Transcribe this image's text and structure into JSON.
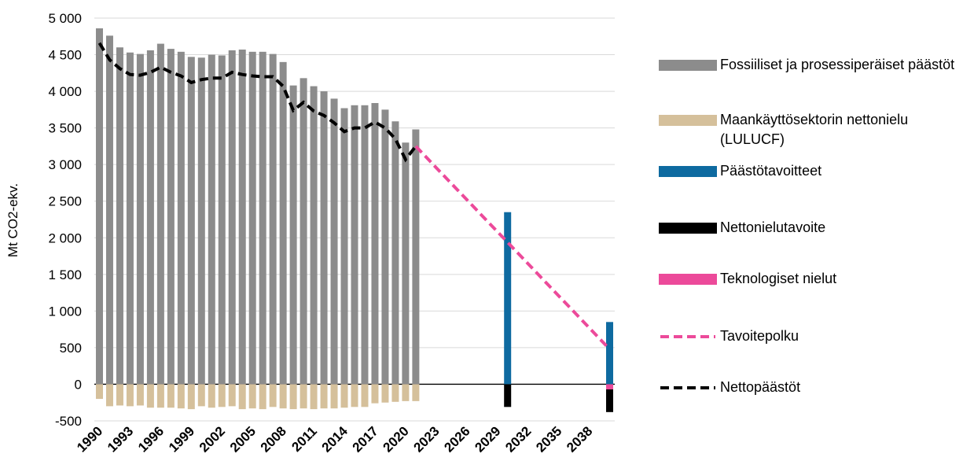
{
  "chart_data": {
    "type": "bar",
    "stacked": true,
    "y_label": "Mt CO2-ekv.",
    "categories": [
      "1990",
      null,
      null,
      "1993",
      null,
      null,
      "1996",
      null,
      null,
      "1999",
      null,
      null,
      "2002",
      null,
      null,
      "2005",
      null,
      null,
      "2008",
      null,
      null,
      "2011",
      null,
      null,
      "2014",
      null,
      null,
      "2017",
      null,
      null,
      "2020",
      null,
      null,
      "2023",
      null,
      null,
      "2026",
      null,
      null,
      "2029",
      null,
      null,
      "2032",
      null,
      null,
      "2035",
      null,
      null,
      "2038",
      null,
      null
    ],
    "ylim": [
      -500,
      5000
    ],
    "yticks": [
      -500,
      0,
      500,
      {
        "value": 1000,
        "label": "1 000"
      },
      {
        "value": 1500,
        "label": "1 500"
      },
      {
        "value": 2000,
        "label": "2 000"
      },
      {
        "value": 2500,
        "label": "2 500"
      },
      {
        "value": 3000,
        "label": "3 000"
      },
      {
        "value": 3500,
        "label": "3 500"
      },
      {
        "value": 4000,
        "label": "4 000"
      },
      {
        "value": 4500,
        "label": "4 500"
      },
      {
        "value": 5000,
        "label": "5 000"
      }
    ],
    "grid": true,
    "legend": "right",
    "series": [
      {
        "name": "Fossiiliset ja prosessiperäiset päästöt",
        "color": "#8c8c8c",
        "type": "bar",
        "values": [
          4860,
          4760,
          4600,
          4530,
          4510,
          4560,
          4650,
          4580,
          4540,
          4470,
          4460,
          4500,
          4490,
          4560,
          4570,
          4540,
          4540,
          4510,
          4400,
          4080,
          4180,
          4070,
          4000,
          3900,
          3770,
          3810,
          3810,
          3840,
          3750,
          3590,
          3300,
          3480,
          null,
          null,
          null,
          null,
          null,
          null,
          null,
          null,
          null,
          null,
          null,
          null,
          null,
          null,
          null,
          null,
          null,
          null,
          null
        ]
      },
      {
        "name": "Maankäyttösektorin nettonielu (LULUCF)",
        "color": "#d5c09b",
        "type": "bar",
        "values": [
          -200,
          -300,
          -290,
          -300,
          -290,
          -320,
          -320,
          -320,
          -330,
          -340,
          -300,
          -320,
          -310,
          -300,
          -340,
          -330,
          -340,
          -310,
          -330,
          -340,
          -330,
          -340,
          -330,
          -330,
          -320,
          -310,
          -310,
          -260,
          -250,
          -240,
          -230,
          -230,
          null,
          null,
          null,
          null,
          null,
          null,
          null,
          null,
          null,
          null,
          null,
          null,
          null,
          null,
          null,
          null,
          null,
          null,
          null
        ]
      },
      {
        "name": "Päästötavoitteet",
        "color": "#0e6aa0",
        "type": "bar",
        "values": [
          null,
          null,
          null,
          null,
          null,
          null,
          null,
          null,
          null,
          null,
          null,
          null,
          null,
          null,
          null,
          null,
          null,
          null,
          null,
          null,
          null,
          null,
          null,
          null,
          null,
          null,
          null,
          null,
          null,
          null,
          null,
          null,
          null,
          null,
          null,
          null,
          null,
          null,
          null,
          null,
          2350,
          null,
          null,
          null,
          null,
          null,
          null,
          null,
          null,
          null,
          850
        ]
      },
      {
        "name": "Nettonielutavoite",
        "color": "#000000",
        "type": "bar",
        "values": [
          null,
          null,
          null,
          null,
          null,
          null,
          null,
          null,
          null,
          null,
          null,
          null,
          null,
          null,
          null,
          null,
          null,
          null,
          null,
          null,
          null,
          null,
          null,
          null,
          null,
          null,
          null,
          null,
          null,
          null,
          null,
          null,
          null,
          null,
          null,
          null,
          null,
          null,
          null,
          null,
          -310,
          null,
          null,
          null,
          null,
          null,
          null,
          null,
          null,
          null,
          -310
        ]
      },
      {
        "name": "Teknologiset nielut",
        "color": "#ec4a9a",
        "type": "bar",
        "values": [
          null,
          null,
          null,
          null,
          null,
          null,
          null,
          null,
          null,
          null,
          null,
          null,
          null,
          null,
          null,
          null,
          null,
          null,
          null,
          null,
          null,
          null,
          null,
          null,
          null,
          null,
          null,
          null,
          null,
          null,
          null,
          null,
          null,
          null,
          null,
          null,
          null,
          null,
          null,
          null,
          null,
          null,
          null,
          null,
          null,
          null,
          null,
          null,
          null,
          null,
          -70
        ]
      },
      {
        "name": "Tavoitepolku",
        "color": "#ec4a9a",
        "type": "line",
        "dashed": true,
        "values": [
          null,
          null,
          null,
          null,
          null,
          null,
          null,
          null,
          null,
          null,
          null,
          null,
          null,
          null,
          null,
          null,
          null,
          null,
          null,
          null,
          null,
          null,
          null,
          null,
          null,
          null,
          null,
          null,
          null,
          null,
          null,
          3250,
          3104,
          2958,
          2813,
          2667,
          2521,
          2375,
          2229,
          2083,
          1938,
          1792,
          1646,
          1500,
          1354,
          1208,
          1063,
          917,
          771,
          625,
          479
        ]
      },
      {
        "name": "Nettopäästöt",
        "color": "#000000",
        "type": "line",
        "dashed": true,
        "values": [
          4660,
          4430,
          4310,
          4230,
          4220,
          4260,
          4330,
          4260,
          4210,
          4120,
          4160,
          4180,
          4180,
          4260,
          4230,
          4210,
          4200,
          4200,
          4070,
          3740,
          3850,
          3730,
          3670,
          3570,
          3450,
          3500,
          3500,
          3580,
          3500,
          3350,
          3070,
          3250,
          null,
          null,
          null,
          null,
          null,
          null,
          null,
          null,
          null,
          null,
          null,
          null,
          null,
          null,
          null,
          null,
          null,
          null,
          null
        ]
      }
    ]
  }
}
